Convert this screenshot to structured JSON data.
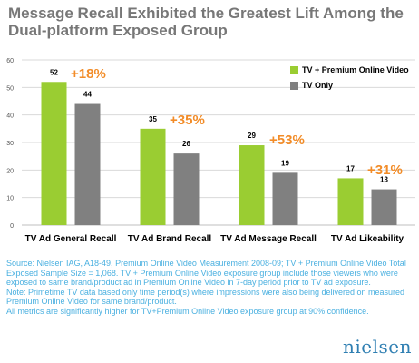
{
  "title": "Message Recall Exhibited the Greatest Lift Among the Dual-platform Exposed Group",
  "colors": {
    "tv_premium": "#9acd32",
    "tv_only": "#808080",
    "lift": "#f28c28",
    "notes": "#4ab0e0",
    "logo": "#2f7fb2",
    "grid": "#d9d9d9"
  },
  "chart_data": {
    "type": "bar",
    "categories": [
      "TV Ad General Recall",
      "TV Ad Brand Recall",
      "TV Ad Message Recall",
      "TV Ad Likeability"
    ],
    "series": [
      {
        "name": "TV + Premium Online Video",
        "values": [
          52,
          35,
          29,
          17
        ]
      },
      {
        "name": "TV Only",
        "values": [
          44,
          26,
          19,
          13
        ]
      }
    ],
    "lifts": [
      "+18%",
      "+35%",
      "+53%",
      "+31%"
    ],
    "yticks": [
      "0",
      "10",
      "20",
      "30",
      "40",
      "50",
      "60"
    ],
    "ylim": [
      0,
      60
    ],
    "grid": true,
    "legend_position": "top-right"
  },
  "notes": [
    "Source: Nielsen IAG, A18-49, Premium Online Video Measurement 2008-09; TV + Premium Online Video Total Exposed Sample Size = 1,068. TV + Premium Online Video exposure group include those viewers who were exposed to same brand/product ad in Premium Online Video in 7-day period prior to TV ad exposure.",
    "Note: Primetime TV data based only time period(s) where impressions were also being delivered on measured Premium Online Video for same brand/product.",
    "All metrics are significantly higher for TV+Premium Online Video exposure group at 90% confidence."
  ],
  "logo": "nielsen"
}
